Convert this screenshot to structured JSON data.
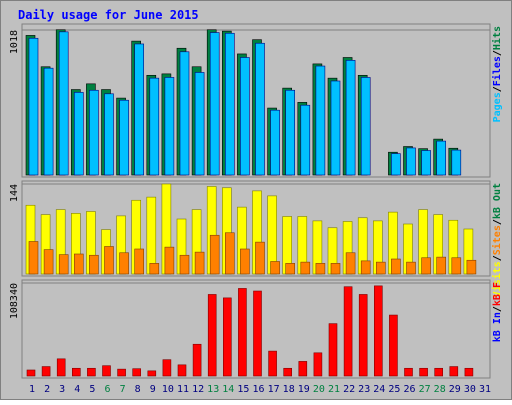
{
  "colors": {
    "background": "#ffffff",
    "frame": "#c0c0c0",
    "plot_bg": "#c0c0c0",
    "title": "#0000ff",
    "pages": "#00c0ff",
    "files": "#0000ff",
    "hits": "#008040",
    "visits": "#ffff00",
    "sites": "#ff8000",
    "kb_out": "#008040",
    "kb_in": "#0000ff",
    "kb_f": "#ff0000",
    "weekend_day": "#008040",
    "weekday": "#000080"
  },
  "chart_data": {
    "type": "bar",
    "title": "Daily usage for June 2015",
    "categories": [
      "1",
      "2",
      "3",
      "4",
      "5",
      "6",
      "7",
      "8",
      "9",
      "10",
      "11",
      "12",
      "13",
      "14",
      "15",
      "16",
      "17",
      "18",
      "19",
      "20",
      "21",
      "22",
      "23",
      "24",
      "25",
      "26",
      "27",
      "28",
      "29",
      "30",
      "31"
    ],
    "weekend_days": [
      "6",
      "7",
      "13",
      "14",
      "20",
      "21",
      "27",
      "28"
    ],
    "panels": [
      {
        "name": "hits-files-pages",
        "ymax_label": "1018",
        "ymax": 1018,
        "legend": [
          {
            "text": "Pages",
            "color_key": "pages"
          },
          {
            "text": "Files",
            "color_key": "files"
          },
          {
            "text": "Hits",
            "color_key": "hits"
          }
        ],
        "series": [
          {
            "name": "Hits",
            "color_key": "hits",
            "values": [
              980,
              760,
              1020,
              600,
              640,
              600,
              540,
              940,
              700,
              710,
              890,
              760,
              1020,
              1010,
              850,
              950,
              470,
              610,
              510,
              780,
              680,
              825,
              700,
              0,
              160,
              200,
              185,
              252,
              188,
              0,
              0
            ]
          },
          {
            "name": "Pages",
            "color_key": "pages",
            "values": [
              960,
              750,
              1005,
              580,
              595,
              570,
              525,
              920,
              680,
              685,
              865,
              720,
              1000,
              995,
              825,
              925,
              455,
              595,
              490,
              765,
              660,
              805,
              685,
              0,
              150,
              190,
              172,
              238,
              175,
              0,
              0
            ]
          }
        ]
      },
      {
        "name": "visits-sites",
        "ymax_label": "144",
        "ymax": 144,
        "legend": [
          {
            "text": "Visits",
            "color_key": "visits"
          },
          {
            "text": "Sites",
            "color_key": "sites"
          },
          {
            "text": "kB Out",
            "color_key": "kb_out"
          }
        ],
        "series": [
          {
            "name": "Visits",
            "color_key": "visits",
            "values": [
              110,
              95,
              103,
              97,
              100,
              71,
              93,
              118,
              123,
              144,
              88,
              103,
              140,
              138,
              107,
              133,
              125,
              92,
              92,
              85,
              74,
              84,
              90,
              85,
              99,
              80,
              103,
              95,
              86,
              72,
              0
            ]
          },
          {
            "name": "Sites",
            "color_key": "sites",
            "values": [
              52,
              39,
              31,
              32,
              30,
              44,
              34,
              40,
              17,
              43,
              30,
              35,
              62,
              66,
              40,
              51,
              20,
              17,
              19,
              17,
              17,
              34,
              21,
              19,
              24,
              19,
              26,
              27,
              26,
              22,
              0
            ]
          }
        ]
      },
      {
        "name": "kb",
        "ymax_label": "108340",
        "ymax": 108340,
        "legend": [
          {
            "text": "kB In",
            "color_key": "kb_in"
          },
          {
            "text": "kB F",
            "color_key": "kb_f"
          }
        ],
        "series": [
          {
            "name": "kB F",
            "color_key": "kb_f",
            "values": [
              7000,
              11000,
              20000,
              9000,
              9000,
              12000,
              8000,
              8500,
              6000,
              19000,
              13000,
              37000,
              95000,
              91000,
              102000,
              99000,
              29000,
              9000,
              17000,
              27000,
              61000,
              104000,
              95000,
              105000,
              71000,
              9000,
              9000,
              9000,
              11000,
              9000,
              0
            ]
          }
        ]
      }
    ]
  }
}
